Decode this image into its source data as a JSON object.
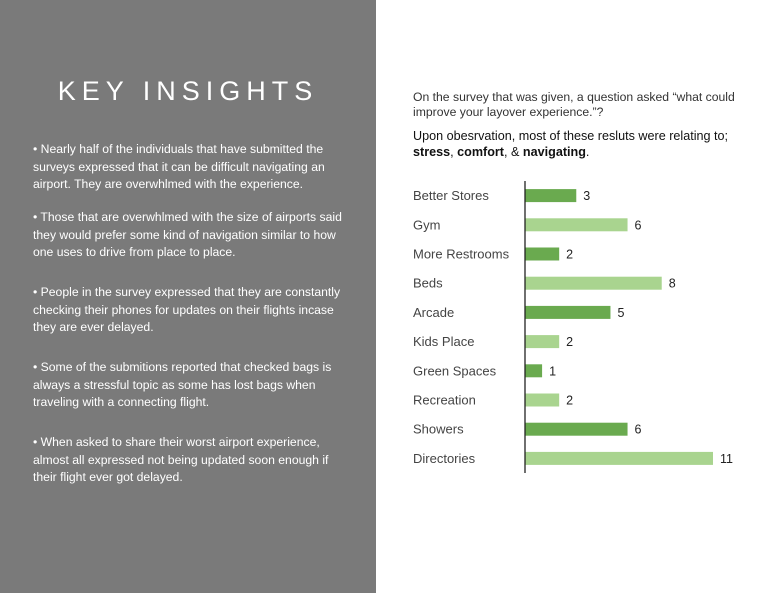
{
  "left_panel": {
    "title": "KEY INSIGHTS",
    "insights": [
      "• Nearly half of the individuals that have submitted the surveys expressed that it can be difficult navigating an airport. They are overwhlmed with the experience.",
      "• Those that are overwhlmed with the size of airports said they would prefer some kind of navigation similar to how one uses to drive from place to place.",
      "• People in the survey expressed that they are constantly checking their phones for updates on their flights incase they are ever delayed.",
      "• Some of the submitions reported that checked bags is always a stressful topic as some has lost bags when traveling with a connecting flight.",
      "• When asked to share their worst airport experience, almost all expressed not being updated soon enough if their flight ever got delayed."
    ]
  },
  "right_panel": {
    "intro": "On the survey that was given, a question asked “what could improve your layover experience.”?",
    "sub_intro_prefix": "Upon obesrvation, most of these resluts were relating to; ",
    "kw1": "stress",
    "sep1": ", ",
    "kw2": "comfort",
    "sep2": ", & ",
    "kw3": "navigating",
    "end": "."
  },
  "colors": {
    "panel_bg": "#7a7a7a",
    "bar_dark": "#6aaa4f",
    "bar_light": "#a9d48f",
    "axis": "#222222",
    "label_text": "#444444"
  },
  "chart_data": {
    "type": "bar",
    "orientation": "horizontal",
    "categories": [
      "Better Stores",
      "Gym",
      "More Restrooms",
      "Beds",
      "Arcade",
      "Kids Place",
      "Green Spaces",
      "Recreation",
      "Showers",
      "Directories"
    ],
    "values": [
      3,
      6,
      2,
      8,
      5,
      2,
      1,
      2,
      6,
      11
    ],
    "shades": [
      "dark",
      "light",
      "dark",
      "light",
      "dark",
      "light",
      "dark",
      "light",
      "dark",
      "light"
    ],
    "title": "",
    "xlabel": "",
    "ylabel": "",
    "xlim": [
      0,
      11
    ],
    "grid": false,
    "legend": "none"
  }
}
